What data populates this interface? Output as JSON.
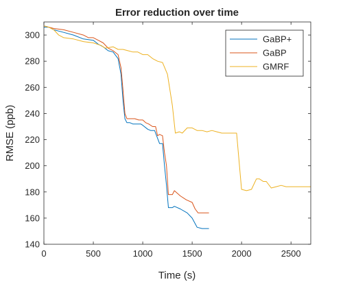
{
  "chart_data": {
    "type": "line",
    "title": "Error reduction over time",
    "xlabel": "Time (s)",
    "ylabel": "RMSE (ppb)",
    "xlim": [
      0,
      2700
    ],
    "ylim": [
      140,
      310
    ],
    "xticks": [
      0,
      500,
      1000,
      1500,
      2000,
      2500
    ],
    "yticks": [
      140,
      160,
      180,
      200,
      220,
      240,
      260,
      280,
      300
    ],
    "grid": false,
    "legend_position": "top-right",
    "series": [
      {
        "name": "GaBP+",
        "color": "#0072bd",
        "points": [
          [
            0,
            306
          ],
          [
            50,
            306
          ],
          [
            100,
            304
          ],
          [
            200,
            302
          ],
          [
            300,
            300
          ],
          [
            400,
            297
          ],
          [
            500,
            296
          ],
          [
            550,
            293
          ],
          [
            600,
            291
          ],
          [
            650,
            288
          ],
          [
            700,
            287
          ],
          [
            730,
            284
          ],
          [
            750,
            282
          ],
          [
            780,
            270
          ],
          [
            800,
            250
          ],
          [
            820,
            236
          ],
          [
            840,
            233
          ],
          [
            870,
            233
          ],
          [
            900,
            232
          ],
          [
            950,
            232
          ],
          [
            980,
            232
          ],
          [
            1000,
            231
          ],
          [
            1050,
            228
          ],
          [
            1080,
            227
          ],
          [
            1120,
            227
          ],
          [
            1150,
            221
          ],
          [
            1170,
            217
          ],
          [
            1200,
            217
          ],
          [
            1220,
            200
          ],
          [
            1240,
            185
          ],
          [
            1260,
            168
          ],
          [
            1300,
            168
          ],
          [
            1320,
            169
          ],
          [
            1380,
            167
          ],
          [
            1450,
            164
          ],
          [
            1500,
            160
          ],
          [
            1550,
            153
          ],
          [
            1600,
            152
          ],
          [
            1670,
            152
          ]
        ]
      },
      {
        "name": "GaBP",
        "color": "#d95319",
        "points": [
          [
            0,
            307
          ],
          [
            50,
            306
          ],
          [
            100,
            305
          ],
          [
            200,
            304
          ],
          [
            300,
            302
          ],
          [
            400,
            300
          ],
          [
            450,
            298
          ],
          [
            500,
            298
          ],
          [
            550,
            296
          ],
          [
            600,
            294
          ],
          [
            650,
            290
          ],
          [
            700,
            288
          ],
          [
            750,
            285
          ],
          [
            780,
            275
          ],
          [
            800,
            258
          ],
          [
            820,
            240
          ],
          [
            840,
            236
          ],
          [
            880,
            236
          ],
          [
            920,
            236
          ],
          [
            960,
            235
          ],
          [
            1000,
            235
          ],
          [
            1030,
            233
          ],
          [
            1060,
            232
          ],
          [
            1100,
            230
          ],
          [
            1130,
            230
          ],
          [
            1150,
            223
          ],
          [
            1170,
            224
          ],
          [
            1200,
            223
          ],
          [
            1220,
            210
          ],
          [
            1240,
            200
          ],
          [
            1260,
            178
          ],
          [
            1300,
            178
          ],
          [
            1320,
            181
          ],
          [
            1380,
            177
          ],
          [
            1440,
            174
          ],
          [
            1500,
            172
          ],
          [
            1530,
            167
          ],
          [
            1560,
            164
          ],
          [
            1620,
            164
          ],
          [
            1670,
            164
          ]
        ]
      },
      {
        "name": "GMRF",
        "color": "#edb120",
        "points": [
          [
            0,
            307
          ],
          [
            50,
            306
          ],
          [
            100,
            304
          ],
          [
            150,
            300
          ],
          [
            200,
            298
          ],
          [
            300,
            297
          ],
          [
            400,
            295
          ],
          [
            500,
            294
          ],
          [
            580,
            292
          ],
          [
            600,
            291
          ],
          [
            620,
            290
          ],
          [
            700,
            291
          ],
          [
            750,
            289
          ],
          [
            800,
            289
          ],
          [
            850,
            288
          ],
          [
            900,
            287
          ],
          [
            950,
            287
          ],
          [
            1000,
            285
          ],
          [
            1050,
            285
          ],
          [
            1100,
            282
          ],
          [
            1150,
            280
          ],
          [
            1200,
            279
          ],
          [
            1250,
            270
          ],
          [
            1300,
            246
          ],
          [
            1330,
            225
          ],
          [
            1370,
            226
          ],
          [
            1400,
            225
          ],
          [
            1450,
            229
          ],
          [
            1500,
            229
          ],
          [
            1550,
            227
          ],
          [
            1600,
            227
          ],
          [
            1650,
            226
          ],
          [
            1700,
            227
          ],
          [
            1750,
            226
          ],
          [
            1800,
            225
          ],
          [
            1850,
            225
          ],
          [
            1900,
            225
          ],
          [
            1950,
            225
          ],
          [
            2000,
            182
          ],
          [
            2050,
            181
          ],
          [
            2100,
            182
          ],
          [
            2150,
            190
          ],
          [
            2180,
            190
          ],
          [
            2220,
            188
          ],
          [
            2250,
            188
          ],
          [
            2300,
            183
          ],
          [
            2350,
            184
          ],
          [
            2400,
            185
          ],
          [
            2450,
            184
          ],
          [
            2500,
            184
          ],
          [
            2600,
            184
          ],
          [
            2700,
            184
          ]
        ]
      }
    ]
  }
}
